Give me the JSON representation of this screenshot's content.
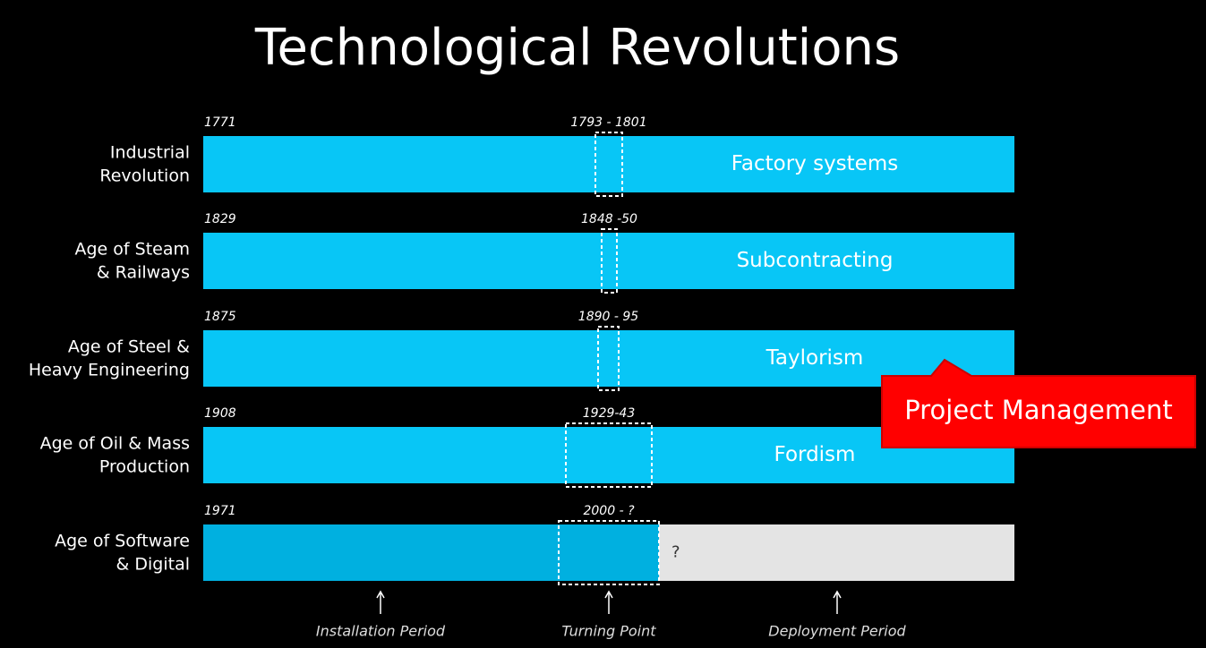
{
  "title": "Technological Revolutions",
  "rows": [
    {
      "label": [
        "Industrial",
        "Revolution"
      ],
      "start": "1771",
      "turning_point": "1793 - 1801",
      "deployment": "Factory systems"
    },
    {
      "label": [
        "Age of Steam",
        "& Railways"
      ],
      "start": "1829",
      "turning_point": "1848 -50",
      "deployment": "Subcontracting"
    },
    {
      "label": [
        "Age of Steel &",
        "Heavy Engineering"
      ],
      "start": "1875",
      "turning_point": "1890 - 95",
      "deployment": "Taylorism"
    },
    {
      "label": [
        "Age of Oil & Mass",
        "Production"
      ],
      "start": "1908",
      "turning_point": "1929-43",
      "deployment": "Fordism"
    },
    {
      "label": [
        "Age of Software",
        "& Digital"
      ],
      "start": "1971",
      "turning_point": "2000 - ?",
      "deployment": "?"
    }
  ],
  "axis_labels": [
    "Installation Period",
    "Turning Point",
    "Deployment Period"
  ],
  "callout": "Project Management"
}
